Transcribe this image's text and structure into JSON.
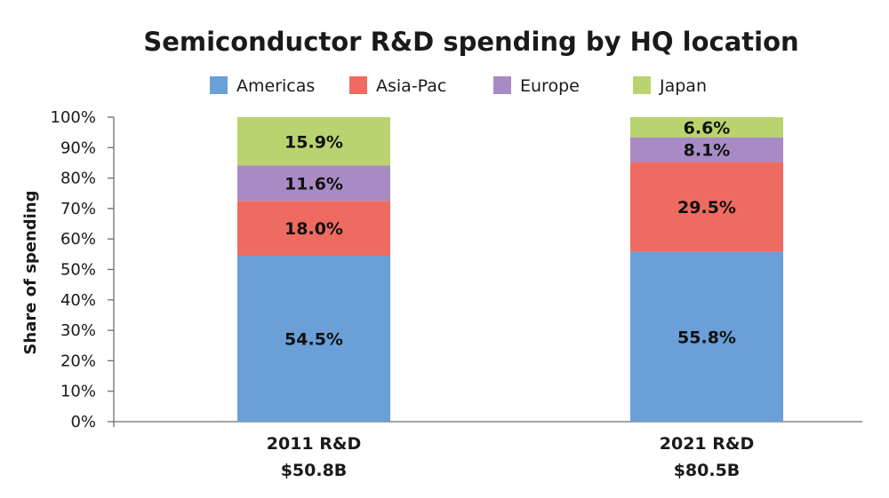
{
  "chart_data": {
    "type": "bar",
    "stacked": true,
    "title": "Semiconductor R&D spending by HQ location",
    "xlabel": "",
    "ylabel": "Share of spending",
    "ylim": [
      0,
      100
    ],
    "y_ticks": [
      "0%",
      "10%",
      "20%",
      "30%",
      "40%",
      "50%",
      "60%",
      "70%",
      "80%",
      "90%",
      "100%"
    ],
    "legend_position": "top",
    "categories": [
      {
        "line1": "2011 R&D",
        "line2": "$50.8B"
      },
      {
        "line1": "2021 R&D",
        "line2": "$80.5B"
      }
    ],
    "series": [
      {
        "name": "Americas",
        "color": "#6a9fd8",
        "values": [
          54.5,
          55.8
        ],
        "labels": [
          "54.5%",
          "55.8%"
        ]
      },
      {
        "name": "Asia-Pac",
        "color": "#ee6b61",
        "values": [
          18.0,
          29.5
        ],
        "labels": [
          "18.0%",
          "29.5%"
        ]
      },
      {
        "name": "Europe",
        "color": "#a88bc4",
        "values": [
          11.6,
          8.1
        ],
        "labels": [
          "11.6%",
          "8.1%"
        ]
      },
      {
        "name": "Japan",
        "color": "#b9d46e",
        "values": [
          15.9,
          6.6
        ],
        "labels": [
          "15.9%",
          "6.6%"
        ]
      }
    ]
  }
}
